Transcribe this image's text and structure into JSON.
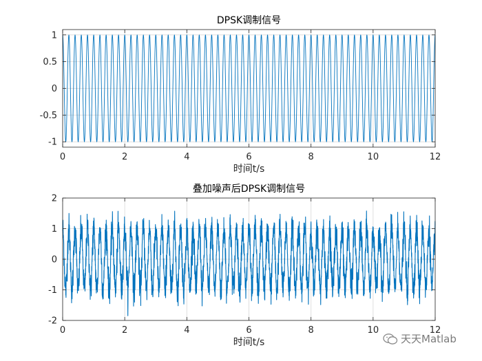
{
  "chart_data": [
    {
      "type": "line",
      "title": "DPSK调制信号",
      "xlabel": "时间t/s",
      "ylabel": "",
      "xlim": [
        0,
        12
      ],
      "ylim": [
        -1.1,
        1.1
      ],
      "xticks": [
        0,
        2,
        4,
        6,
        8,
        10,
        12
      ],
      "xtick_labels": [
        "0",
        "2",
        "4",
        "6",
        "8",
        "10",
        "12"
      ],
      "yticks": [
        -1,
        -0.5,
        0,
        0.5,
        1
      ],
      "ytick_labels": [
        "-1",
        "-0.5",
        "0",
        "0.5",
        "1"
      ],
      "grid": true,
      "series": [
        {
          "color": "#0072BD",
          "waveform": "cosine",
          "amplitude": 1.0,
          "carrier_cycles_per_second": 5,
          "noise_std": 0
        }
      ]
    },
    {
      "type": "line",
      "title": "叠加噪声后DPSK调制信号",
      "xlabel": "时间t/s",
      "ylabel": "",
      "xlim": [
        0,
        12
      ],
      "ylim": [
        -2,
        2
      ],
      "xticks": [
        0,
        2,
        4,
        6,
        8,
        10,
        12
      ],
      "xtick_labels": [
        "0",
        "2",
        "4",
        "6",
        "8",
        "10",
        "12"
      ],
      "yticks": [
        -2,
        -1,
        0,
        1,
        2
      ],
      "ytick_labels": [
        "-2",
        "-1",
        "0",
        "1",
        "2"
      ],
      "grid": true,
      "series": [
        {
          "color": "#0072BD",
          "waveform": "cosine",
          "amplitude": 1.0,
          "carrier_cycles_per_second": 5,
          "noise_std": 0.25
        }
      ]
    }
  ],
  "watermark": {
    "text": "天天Matlab",
    "icon": "wechat-icon",
    "color": "#7a7a7a"
  }
}
